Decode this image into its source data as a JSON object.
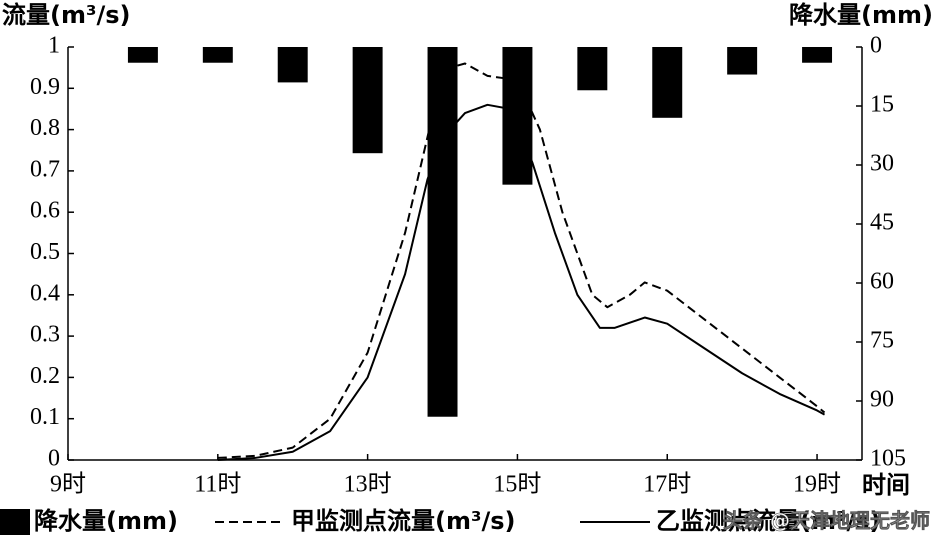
{
  "chart_data": {
    "type": "combo",
    "ylabel": "流量(m³/s)",
    "y2label": "降水量(mm)",
    "xlabel": "时间",
    "xlim": [
      9,
      19.6
    ],
    "xticks": [
      {
        "value": 9,
        "label": "9时"
      },
      {
        "value": 11,
        "label": "11时"
      },
      {
        "value": 13,
        "label": "13时"
      },
      {
        "value": 15,
        "label": "15时"
      },
      {
        "value": 17,
        "label": "17时"
      },
      {
        "value": 19,
        "label": "19时"
      }
    ],
    "ylim": [
      0,
      1
    ],
    "yticks": [
      0,
      0.1,
      0.2,
      0.3,
      0.4,
      0.5,
      0.6,
      0.7,
      0.8,
      0.9,
      1
    ],
    "y2lim": [
      0,
      105
    ],
    "y2_inverted": true,
    "y2ticks": [
      0,
      15,
      30,
      45,
      60,
      75,
      90,
      105
    ],
    "series": [
      {
        "name": "降水量(mm)",
        "type": "bar",
        "axis": "y2",
        "color": "#000000",
        "x": [
          10,
          11,
          12,
          13,
          14,
          15,
          16,
          17,
          18,
          19
        ],
        "values": [
          4,
          4,
          9,
          27,
          94,
          35,
          11,
          18,
          7,
          4
        ]
      },
      {
        "name": "甲监测点流量(m³/s)",
        "type": "line",
        "linestyle": "dashed",
        "color": "#000000",
        "x": [
          11,
          11.5,
          12,
          12.5,
          13,
          13.5,
          13.9,
          14.1,
          14.3,
          14.6,
          15,
          15.3,
          15.6,
          16,
          16.2,
          16.5,
          16.7,
          17,
          17.5,
          18,
          18.5,
          19,
          19.1
        ],
        "values": [
          0.005,
          0.01,
          0.03,
          0.1,
          0.26,
          0.55,
          0.86,
          0.95,
          0.96,
          0.93,
          0.92,
          0.8,
          0.6,
          0.4,
          0.37,
          0.4,
          0.43,
          0.41,
          0.34,
          0.27,
          0.2,
          0.13,
          0.115
        ]
      },
      {
        "name": "乙监测点流量(m³/s)",
        "type": "line",
        "linestyle": "solid",
        "color": "#000000",
        "x": [
          11,
          11.5,
          12,
          12.5,
          13,
          13.5,
          13.8,
          14,
          14.3,
          14.6,
          14.9,
          15.2,
          15.5,
          15.8,
          16.1,
          16.3,
          16.7,
          17,
          17.5,
          18,
          18.5,
          19,
          19.1
        ],
        "values": [
          0,
          0.005,
          0.02,
          0.07,
          0.2,
          0.45,
          0.68,
          0.78,
          0.84,
          0.86,
          0.85,
          0.72,
          0.55,
          0.4,
          0.32,
          0.32,
          0.345,
          0.33,
          0.27,
          0.21,
          0.16,
          0.12,
          0.11
        ]
      }
    ],
    "watermark": "头条 @天津地理无老师"
  }
}
